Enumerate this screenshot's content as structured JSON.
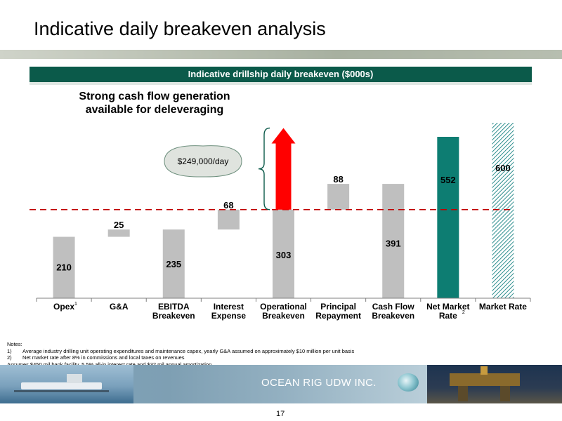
{
  "page": {
    "title": "Indicative daily breakeven analysis",
    "banner": "Indicative drillship daily breakeven ($000s)",
    "subtitle_line1": "Strong cash flow generation",
    "subtitle_line2": "available for deleveraging",
    "callout": "$249,000/day",
    "company": "OCEAN RIG UDW INC.",
    "page_number": "17"
  },
  "notes": {
    "heading": "Notes:",
    "items": [
      {
        "num": "1)",
        "text": "Average  industry drilling unit operating expenditures and maintenance capex, yearly G&A assumed on approximately $10 million per unit basis"
      },
      {
        "num": "2)",
        "text": "Net market rate after 8% in commissions and local taxes on revenues"
      }
    ],
    "extra": "Assumes $450 mil bank facility, 5.5% all-in interest rate and $32 mil annual amortization"
  },
  "chart_data": {
    "type": "bar",
    "subtype": "waterfall",
    "ylim": [
      0,
      660
    ],
    "categories": [
      {
        "line1": "Opex",
        "line2": "",
        "sup": "1"
      },
      {
        "line1": "G&A",
        "line2": "",
        "sup": ""
      },
      {
        "line1": "EBITDA",
        "line2": "Breakeven",
        "sup": ""
      },
      {
        "line1": "Interest",
        "line2": "Expense",
        "sup": ""
      },
      {
        "line1": "Operational",
        "line2": "Breakeven",
        "sup": ""
      },
      {
        "line1": "Principal",
        "line2": "Repayment",
        "sup": ""
      },
      {
        "line1": "Cash Flow",
        "line2": "Breakeven",
        "sup": ""
      },
      {
        "line1": "Net Market",
        "line2": "Rate",
        "sup": "2"
      },
      {
        "line1": "Market Rate",
        "line2": "",
        "sup": ""
      }
    ],
    "bars": [
      {
        "label": "210",
        "base": 0,
        "value": 210,
        "color": "#bfbfbf",
        "pattern": false
      },
      {
        "label": "25",
        "base": 210,
        "value": 25,
        "color": "#bfbfbf",
        "pattern": false
      },
      {
        "label": "235",
        "base": 0,
        "value": 235,
        "color": "#bfbfbf",
        "pattern": false
      },
      {
        "label": "68",
        "base": 235,
        "value": 68,
        "color": "#bfbfbf",
        "pattern": false
      },
      {
        "label": "303",
        "base": 0,
        "value": 303,
        "color": "#bfbfbf",
        "pattern": false
      },
      {
        "label": "88",
        "base": 303,
        "value": 88,
        "color": "#bfbfbf",
        "pattern": false
      },
      {
        "label": "391",
        "base": 0,
        "value": 391,
        "color": "#bfbfbf",
        "pattern": false
      },
      {
        "label": "552",
        "base": 0,
        "value": 552,
        "color": "#0d7d72",
        "pattern": false
      },
      {
        "label": "600",
        "base": 0,
        "value": 600,
        "color": "#3a9a9a",
        "pattern": true
      }
    ],
    "reference_line": {
      "value": 303,
      "color": "#c00000",
      "style": "dashed"
    },
    "arrow": {
      "from": 303,
      "to": 552,
      "color": "#ff0000"
    }
  }
}
